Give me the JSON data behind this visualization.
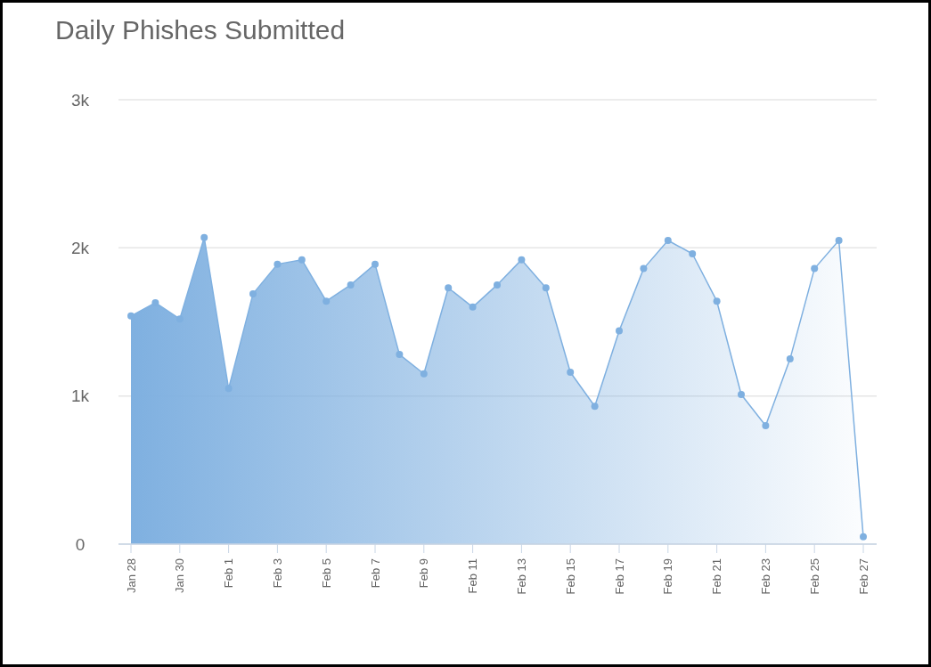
{
  "chart_data": {
    "type": "area",
    "title": "Daily Phishes Submitted",
    "categories": [
      "Jan 28",
      null,
      "Jan 30",
      null,
      "Feb 1",
      null,
      "Feb 3",
      null,
      "Feb 5",
      null,
      "Feb 7",
      null,
      "Feb 9",
      null,
      "Feb 11",
      null,
      "Feb 13",
      null,
      "Feb 15",
      null,
      "Feb 17",
      null,
      "Feb 19",
      null,
      "Feb 21",
      null,
      "Feb 23",
      null,
      "Feb 25",
      null,
      "Feb 27"
    ],
    "series": [
      {
        "color": "#7fb0e0",
        "values": [
          1540,
          1630,
          1520,
          2070,
          1050,
          1690,
          1890,
          1920,
          1640,
          1750,
          1890,
          1280,
          1150,
          1730,
          1600,
          1750,
          1920,
          1730,
          1160,
          930,
          1440,
          1860,
          2050,
          1960,
          1640,
          1010,
          800,
          1250,
          1860,
          2050,
          50
        ]
      }
    ],
    "ylim": [
      0,
      3000
    ],
    "yticks": [
      {
        "value": 0,
        "label": "0"
      },
      {
        "value": 1000,
        "label": "1k"
      },
      {
        "value": 2000,
        "label": "2k"
      },
      {
        "value": 3000,
        "label": "3k"
      }
    ],
    "grid": "y",
    "marker": "circle"
  }
}
